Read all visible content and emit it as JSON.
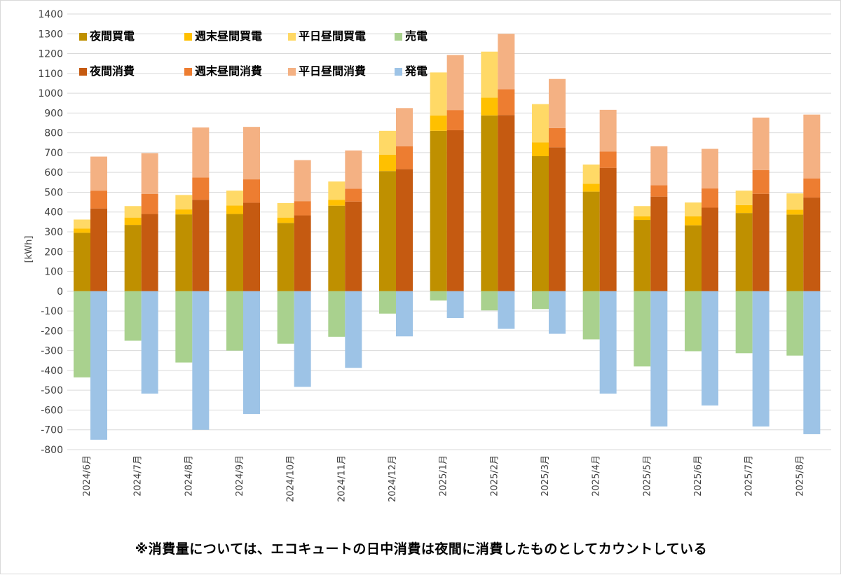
{
  "chart_data": {
    "type": "bar",
    "subtype": "stacked-grouped",
    "ylabel": "[kWh]",
    "ylim": [
      -800,
      1400
    ],
    "ystep": 100,
    "grid": true,
    "categories": [
      "2024/6月",
      "2024/7月",
      "2024/8月",
      "2024/9月",
      "2024/10月",
      "2024/11月",
      "2024/12月",
      "2025/1月",
      "2025/2月",
      "2025/3月",
      "2025/4月",
      "2025/5月",
      "2025/6月",
      "2025/7月",
      "2025/8月"
    ],
    "groups": [
      {
        "name": "買電・売電",
        "series": [
          {
            "name": "夜間買電",
            "color": "#BF9000",
            "values": [
              295,
              335,
              388,
              390,
              345,
              432,
              607,
              810,
              888,
              682,
              503,
              360,
              333,
              395,
              387
            ]
          },
          {
            "name": "週末昼間買電",
            "color": "#FFC000",
            "values": [
              22,
              37,
              25,
              43,
              27,
              30,
              83,
              78,
              90,
              70,
              40,
              18,
              45,
              40,
              25
            ]
          },
          {
            "name": "平日昼間買電",
            "color": "#FFD966",
            "values": [
              45,
              58,
              73,
              75,
              73,
              92,
              120,
              217,
              232,
              193,
              97,
              52,
              70,
              73,
              82
            ]
          },
          {
            "name": "売電",
            "color": "#A9D18E",
            "values": [
              -435,
              -250,
              -360,
              -300,
              -265,
              -230,
              -113,
              -47,
              -97,
              -90,
              -243,
              -380,
              -303,
              -313,
              -325
            ]
          }
        ]
      },
      {
        "name": "消費・発電",
        "series": [
          {
            "name": "夜間消費",
            "color": "#C55A11",
            "values": [
              418,
              390,
              462,
              447,
              383,
              453,
              617,
              813,
              890,
              727,
              623,
              478,
              422,
              492,
              473
            ]
          },
          {
            "name": "週末昼間消費",
            "color": "#ED7D31",
            "values": [
              90,
              102,
              112,
              118,
              72,
              65,
              115,
              102,
              130,
              97,
              83,
              57,
              97,
              120,
              97
            ]
          },
          {
            "name": "平日昼間消費",
            "color": "#F4B183",
            "values": [
              172,
              205,
              253,
              265,
              207,
              193,
              193,
              278,
              280,
              248,
              210,
              197,
              200,
              265,
              322
            ]
          },
          {
            "name": "発電",
            "color": "#9DC3E6",
            "values": [
              -750,
              -517,
              -700,
              -620,
              -483,
              -387,
              -228,
              -135,
              -190,
              -215,
              -517,
              -683,
              -577,
              -683,
              -722
            ]
          }
        ]
      }
    ],
    "legend": {
      "placement": "top-left",
      "rows": [
        [
          "夜間買電",
          "週末昼間買電",
          "平日昼間買電",
          "売電"
        ],
        [
          "夜間消費",
          "週末昼間消費",
          "平日昼間消費",
          "発電"
        ]
      ]
    }
  },
  "footnote": "※消費量については、エコキュートの日中消費は夜間に消費したものとしてカウントしている"
}
